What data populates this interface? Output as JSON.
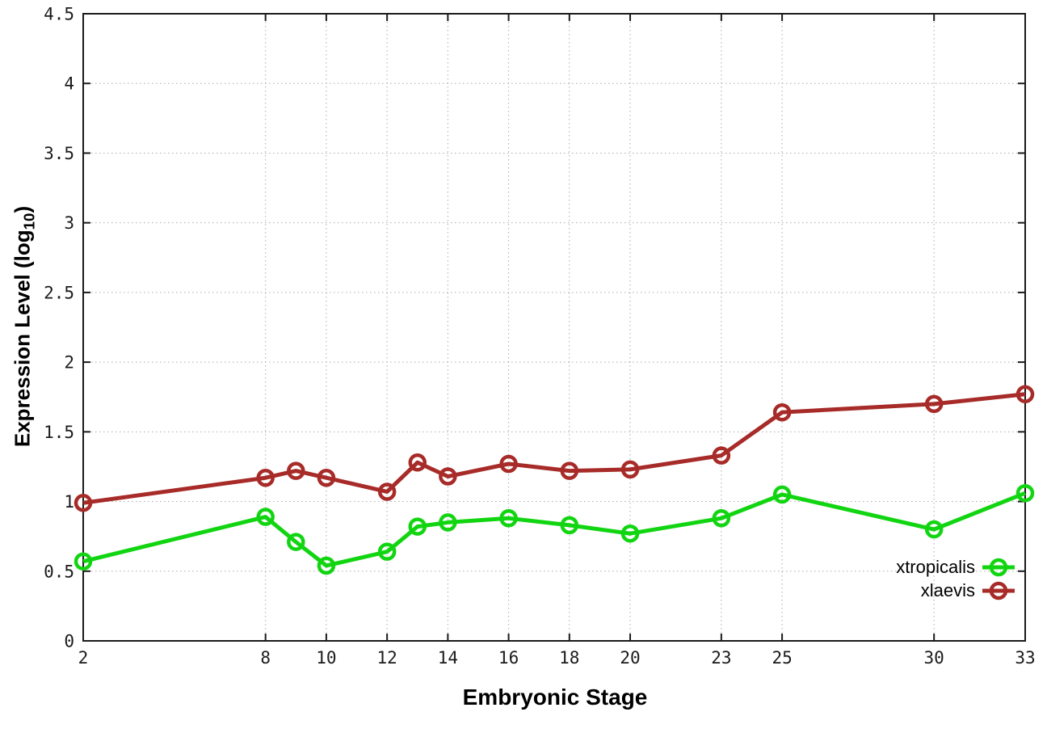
{
  "chart_data": {
    "type": "line",
    "title": "",
    "xlabel": "Embryonic Stage",
    "ylabel": "Expression Level (log10)",
    "ylabel_parts": {
      "prefix": "Expression Level (log",
      "sub": "10",
      "suffix": ")"
    },
    "x": [
      2,
      8,
      9,
      10,
      12,
      13,
      14,
      16,
      18,
      20,
      23,
      25,
      30,
      33
    ],
    "series": [
      {
        "name": "xtropicalis",
        "color": "#12D512",
        "values": [
          0.57,
          0.89,
          0.71,
          0.54,
          0.64,
          0.82,
          0.85,
          0.88,
          0.83,
          0.77,
          0.88,
          1.05,
          0.8,
          1.06
        ]
      },
      {
        "name": "xlaevis",
        "color": "#A72B28",
        "values": [
          0.99,
          1.17,
          1.22,
          1.17,
          1.07,
          1.28,
          1.18,
          1.27,
          1.22,
          1.23,
          1.33,
          1.64,
          1.7,
          1.77
        ]
      }
    ],
    "xlim": [
      2,
      33
    ],
    "ylim": [
      0,
      4.5
    ],
    "xticks": [
      2,
      8,
      10,
      12,
      14,
      16,
      18,
      20,
      23,
      25,
      30,
      33
    ],
    "yticks": [
      0,
      0.5,
      1,
      1.5,
      2,
      2.5,
      3,
      3.5,
      4,
      4.5
    ],
    "ytick_labels": [
      "0",
      "0.5",
      "1",
      "1.5",
      "2",
      "2.5",
      "3",
      "3.5",
      "4",
      "4.5"
    ],
    "grid": true,
    "legend_position": "bottom-right-inside",
    "marker": "open-circle",
    "axis_color": "#1a1a1a",
    "grid_color": "#ababab",
    "background": "#ffffff"
  }
}
